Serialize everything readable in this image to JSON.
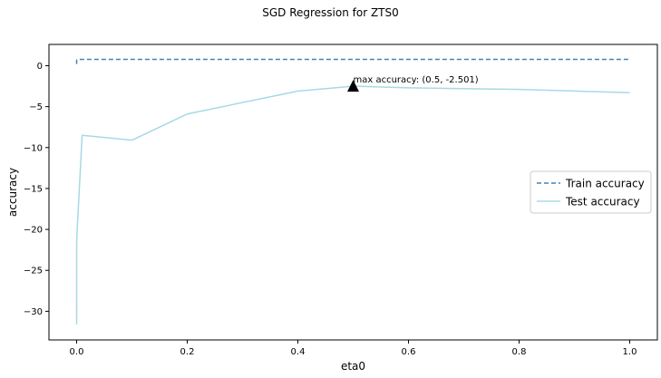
{
  "chart_data": {
    "type": "line",
    "title": "SGD Regression for ZTS0",
    "xlabel": "eta0",
    "ylabel": "accuracy",
    "xlim": [
      -0.05,
      1.05
    ],
    "ylim": [
      -33.5,
      2.6
    ],
    "xticks": [
      0.0,
      0.2,
      0.4,
      0.6,
      0.8,
      1.0
    ],
    "xtick_labels": [
      "0.0",
      "0.2",
      "0.4",
      "0.6",
      "0.8",
      "1.0"
    ],
    "yticks": [
      0,
      -5,
      -10,
      -15,
      -20,
      -25,
      -30
    ],
    "ytick_labels": [
      "0",
      "−5",
      "−10",
      "−15",
      "−20",
      "−25",
      "−30"
    ],
    "grid": false,
    "legend_position": "center-right",
    "x": [
      1e-05,
      0.0001,
      0.001,
      0.01,
      0.1,
      0.2,
      0.4,
      0.5,
      0.6,
      0.8,
      1.0
    ],
    "series": [
      {
        "name": "Train accuracy",
        "style": "dashed",
        "color": "#4682b4",
        "values": [
          0.2,
          0.7,
          0.75,
          0.78,
          0.78,
          0.78,
          0.78,
          0.78,
          0.78,
          0.78,
          0.78
        ]
      },
      {
        "name": "Test accuracy",
        "style": "solid",
        "color": "#a8d8e6",
        "values": [
          -31.6,
          -21.5,
          -20.0,
          -8.5,
          -9.1,
          -5.9,
          -3.1,
          -2.501,
          -2.7,
          -2.9,
          -3.3
        ]
      }
    ],
    "annotation": {
      "text": "max accuracy: (0.5, -2.501)",
      "x": 0.5,
      "y": -2.501,
      "marker": "triangle"
    }
  }
}
